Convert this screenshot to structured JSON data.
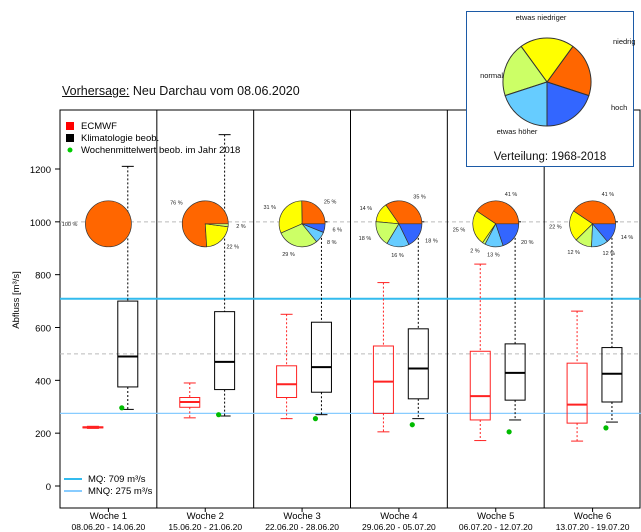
{
  "caption": {
    "label": "Vorhersage:",
    "text": "Neu Darchau vom 08.06.2020"
  },
  "inset": {
    "caption": "Verteilung: 1968-2018",
    "categories": [
      "niedrig",
      "etwas niedriger",
      "normal",
      "etwas höher",
      "hoch"
    ],
    "colors": [
      "#ff6600",
      "#ffff00",
      "#ccff66",
      "#66ccff",
      "#3366ff"
    ],
    "values": [
      20,
      20,
      20,
      20,
      20
    ]
  },
  "chart_data": {
    "type": "box",
    "ylabel": "Abfluss [m³/s]",
    "ylim": [
      0,
      1300
    ],
    "yticks": [
      0,
      200,
      400,
      600,
      800,
      1000,
      1200
    ],
    "grid_dashed_y": [
      500,
      1000
    ],
    "reference_lines": [
      {
        "name": "MQ: 709 m³/s",
        "value": 709,
        "color": "#33bbee"
      },
      {
        "name": "MNQ: 275 m³/s",
        "value": 275,
        "color": "#88ccff"
      }
    ],
    "legend": [
      {
        "label": "ECMWF",
        "color": "#ff0000",
        "symbol": "square"
      },
      {
        "label": "Klimatologie beob.",
        "color": "#000000",
        "symbol": "square"
      },
      {
        "label": "Wochenmittelwert beob. im Jahr 2018",
        "color": "#00cc00",
        "symbol": "dot"
      }
    ],
    "weeks": [
      {
        "label": "Woche 1",
        "dates": "08.06.20 - 14.06.20",
        "ecmwf": {
          "min": 218,
          "q1": 220,
          "median": 222,
          "q3": 224,
          "max": 226
        },
        "clim": {
          "min": 290,
          "q1": 375,
          "median": 490,
          "q3": 700,
          "max": 1210
        },
        "obs2018": 296,
        "pie": [
          {
            "v": 100,
            "label": "100 %"
          },
          {
            "v": 0,
            "label": "0 %"
          },
          {
            "v": 0,
            "label": ""
          },
          {
            "v": 0,
            "label": ""
          },
          {
            "v": 0,
            "label": ""
          }
        ]
      },
      {
        "label": "Woche 2",
        "dates": "15.06.20 - 21.06.20",
        "ecmwf": {
          "min": 258,
          "q1": 298,
          "median": 318,
          "q3": 335,
          "max": 390
        },
        "clim": {
          "min": 265,
          "q1": 365,
          "median": 470,
          "q3": 660,
          "max": 1330
        },
        "obs2018": 270,
        "pie": [
          {
            "v": 76,
            "label": "76 %"
          },
          {
            "v": 22,
            "label": "22 %"
          },
          {
            "v": 2,
            "label": "2 %"
          },
          {
            "v": 0,
            "label": ""
          },
          {
            "v": 0,
            "label": ""
          }
        ]
      },
      {
        "label": "Woche 3",
        "dates": "22.06.20 - 28.06.20",
        "ecmwf": {
          "min": 255,
          "q1": 335,
          "median": 385,
          "q3": 455,
          "max": 650
        },
        "clim": {
          "min": 270,
          "q1": 355,
          "median": 450,
          "q3": 620,
          "max": 1000
        },
        "obs2018": 255,
        "pie": [
          {
            "v": 25,
            "label": "25 %"
          },
          {
            "v": 31,
            "label": "31 %"
          },
          {
            "v": 29,
            "label": "29 %"
          },
          {
            "v": 8,
            "label": "8 %"
          },
          {
            "v": 6,
            "label": "6 %"
          }
        ]
      },
      {
        "label": "Woche 4",
        "dates": "29.06.20 - 05.07.20",
        "ecmwf": {
          "min": 205,
          "q1": 275,
          "median": 395,
          "q3": 530,
          "max": 770
        },
        "clim": {
          "min": 255,
          "q1": 330,
          "median": 445,
          "q3": 595,
          "max": 1000
        },
        "obs2018": 232,
        "pie": [
          {
            "v": 35,
            "label": "35 %"
          },
          {
            "v": 14,
            "label": "14 %"
          },
          {
            "v": 18,
            "label": "18 %"
          },
          {
            "v": 16,
            "label": "16 %"
          },
          {
            "v": 18,
            "label": "18 %"
          }
        ]
      },
      {
        "label": "Woche 5",
        "dates": "06.07.20 - 12.07.20",
        "ecmwf": {
          "min": 172,
          "q1": 250,
          "median": 340,
          "q3": 510,
          "max": 840
        },
        "clim": {
          "min": 250,
          "q1": 325,
          "median": 428,
          "q3": 538,
          "max": 1000
        },
        "obs2018": 205,
        "pie": [
          {
            "v": 41,
            "label": "41 %"
          },
          {
            "v": 25,
            "label": "25 %"
          },
          {
            "v": 2,
            "label": "2 %"
          },
          {
            "v": 13,
            "label": "13 %"
          },
          {
            "v": 20,
            "label": "20 %"
          }
        ]
      },
      {
        "label": "Woche 6",
        "dates": "13.07.20 - 19.07.20",
        "ecmwf": {
          "min": 170,
          "q1": 238,
          "median": 308,
          "q3": 465,
          "max": 662
        },
        "clim": {
          "min": 242,
          "q1": 318,
          "median": 425,
          "q3": 524,
          "max": 1000
        },
        "obs2018": 220,
        "pie": [
          {
            "v": 41,
            "label": "41 %"
          },
          {
            "v": 22,
            "label": "22 %"
          },
          {
            "v": 12,
            "label": "12 %"
          },
          {
            "v": 12,
            "label": "12 %"
          },
          {
            "v": 14,
            "label": "14 %"
          }
        ]
      }
    ]
  }
}
